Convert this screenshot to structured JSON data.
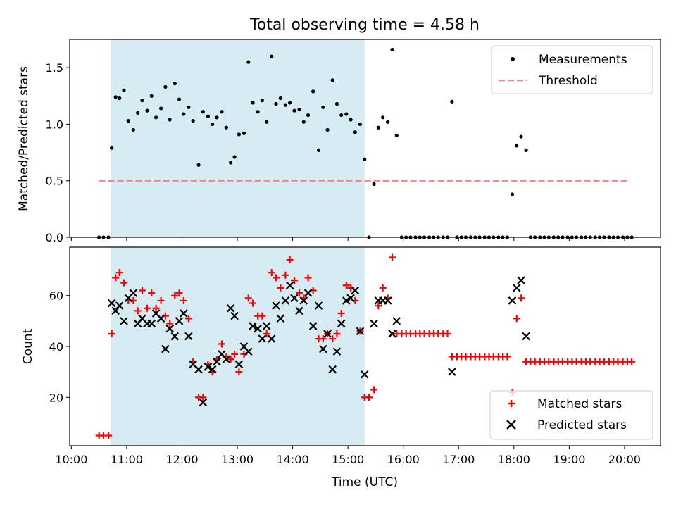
{
  "chart_data": {
    "title": "Total observing time = 4.58 h",
    "xlabel": "Time (UTC)",
    "x_ticks": [
      "10:00",
      "11:00",
      "12:00",
      "13:00",
      "14:00",
      "15:00",
      "16:00",
      "17:00",
      "18:00",
      "19:00",
      "20:00"
    ],
    "x_range_hours": [
      9.97,
      20.65
    ],
    "observing_window_hours": [
      10.72,
      15.3
    ],
    "colors": {
      "window": "#add8e6",
      "measurements": "#000000",
      "threshold": "#ff7f7f",
      "matched": "#ff0000",
      "predicted": "#000000"
    },
    "top": {
      "type": "scatter",
      "ylabel": "Matched/Predicted stars",
      "ylim": [
        0.0,
        1.75
      ],
      "y_ticks": [
        "0.0",
        "0.5",
        "1.0",
        "1.5"
      ],
      "threshold": 0.5,
      "threshold_x": [
        10.5,
        20.1
      ],
      "legend": {
        "location": "top-right",
        "measurements": "Measurements",
        "threshold": "Threshold"
      },
      "points": [
        [
          10.5,
          0
        ],
        [
          10.58,
          0
        ],
        [
          10.67,
          0
        ],
        [
          10.73,
          0.79
        ],
        [
          10.8,
          1.24
        ],
        [
          10.87,
          1.23
        ],
        [
          10.95,
          1.3
        ],
        [
          11.03,
          1.03
        ],
        [
          11.12,
          0.95
        ],
        [
          11.2,
          1.1
        ],
        [
          11.28,
          1.21
        ],
        [
          11.37,
          1.12
        ],
        [
          11.45,
          1.25
        ],
        [
          11.53,
          1.06
        ],
        [
          11.62,
          1.14
        ],
        [
          11.7,
          1.33
        ],
        [
          11.78,
          1.04
        ],
        [
          11.87,
          1.36
        ],
        [
          11.95,
          1.22
        ],
        [
          12.03,
          1.09
        ],
        [
          12.12,
          1.15
        ],
        [
          12.2,
          1.03
        ],
        [
          12.3,
          0.64
        ],
        [
          12.38,
          1.11
        ],
        [
          12.47,
          1.07
        ],
        [
          12.55,
          1.0
        ],
        [
          12.63,
          1.06
        ],
        [
          12.72,
          1.11
        ],
        [
          12.8,
          0.97
        ],
        [
          12.88,
          0.66
        ],
        [
          12.95,
          0.71
        ],
        [
          13.03,
          0.91
        ],
        [
          13.12,
          0.92
        ],
        [
          13.2,
          1.55
        ],
        [
          13.28,
          1.19
        ],
        [
          13.37,
          1.11
        ],
        [
          13.45,
          1.21
        ],
        [
          13.53,
          1.02
        ],
        [
          13.62,
          1.6
        ],
        [
          13.7,
          1.18
        ],
        [
          13.78,
          1.23
        ],
        [
          13.87,
          1.17
        ],
        [
          13.95,
          1.19
        ],
        [
          14.03,
          1.12
        ],
        [
          14.12,
          1.13
        ],
        [
          14.2,
          1.02
        ],
        [
          14.28,
          1.08
        ],
        [
          14.37,
          1.29
        ],
        [
          14.47,
          0.77
        ],
        [
          14.55,
          1.15
        ],
        [
          14.63,
          0.95
        ],
        [
          14.72,
          1.39
        ],
        [
          14.8,
          1.18
        ],
        [
          14.88,
          1.08
        ],
        [
          14.97,
          1.09
        ],
        [
          15.05,
          1.04
        ],
        [
          15.13,
          0.93
        ],
        [
          15.22,
          1.0
        ],
        [
          15.3,
          0.69
        ],
        [
          15.38,
          0
        ],
        [
          15.47,
          0.47
        ],
        [
          15.55,
          0.97
        ],
        [
          15.63,
          1.06
        ],
        [
          15.72,
          1.02
        ],
        [
          15.8,
          1.66
        ],
        [
          15.88,
          0.9
        ],
        [
          15.97,
          0
        ],
        [
          16.05,
          0
        ],
        [
          16.13,
          0
        ],
        [
          16.22,
          0
        ],
        [
          16.3,
          0
        ],
        [
          16.38,
          0
        ],
        [
          16.47,
          0
        ],
        [
          16.55,
          0
        ],
        [
          16.63,
          0
        ],
        [
          16.72,
          0
        ],
        [
          16.8,
          0
        ],
        [
          16.88,
          1.2
        ],
        [
          16.97,
          0
        ],
        [
          17.05,
          0
        ],
        [
          17.13,
          0
        ],
        [
          17.22,
          0
        ],
        [
          17.3,
          0
        ],
        [
          17.38,
          0
        ],
        [
          17.47,
          0
        ],
        [
          17.55,
          0
        ],
        [
          17.63,
          0
        ],
        [
          17.72,
          0
        ],
        [
          17.8,
          0
        ],
        [
          17.88,
          0
        ],
        [
          17.97,
          0.38
        ],
        [
          18.05,
          0.81
        ],
        [
          18.13,
          0.89
        ],
        [
          18.22,
          0.77
        ],
        [
          18.3,
          0
        ],
        [
          18.38,
          0
        ],
        [
          18.47,
          0
        ],
        [
          18.55,
          0
        ],
        [
          18.63,
          0
        ],
        [
          18.72,
          0
        ],
        [
          18.8,
          0
        ],
        [
          18.88,
          0
        ],
        [
          18.97,
          0
        ],
        [
          19.05,
          0
        ],
        [
          19.13,
          0
        ],
        [
          19.22,
          0
        ],
        [
          19.3,
          0
        ],
        [
          19.38,
          0
        ],
        [
          19.47,
          0
        ],
        [
          19.55,
          0
        ],
        [
          19.63,
          0
        ],
        [
          19.72,
          0
        ],
        [
          19.8,
          0
        ],
        [
          19.88,
          0
        ],
        [
          19.97,
          0
        ],
        [
          20.05,
          0
        ],
        [
          20.13,
          0
        ]
      ]
    },
    "bottom": {
      "type": "scatter",
      "ylabel": "Count",
      "ylim": [
        1,
        79
      ],
      "y_ticks": [
        20,
        40,
        60
      ],
      "legend": {
        "location": "bottom-right",
        "matched": "Matched stars",
        "predicted": "Predicted stars"
      },
      "matched": [
        [
          10.5,
          5
        ],
        [
          10.58,
          5
        ],
        [
          10.67,
          5
        ],
        [
          10.73,
          45
        ],
        [
          10.8,
          67
        ],
        [
          10.87,
          69
        ],
        [
          10.95,
          65
        ],
        [
          11.03,
          58
        ],
        [
          11.12,
          58
        ],
        [
          11.2,
          54
        ],
        [
          11.28,
          62
        ],
        [
          11.37,
          55
        ],
        [
          11.45,
          61
        ],
        [
          11.53,
          55
        ],
        [
          11.62,
          58
        ],
        [
          11.7,
          52
        ],
        [
          11.78,
          49
        ],
        [
          11.87,
          60
        ],
        [
          11.95,
          61
        ],
        [
          12.03,
          58
        ],
        [
          12.12,
          51
        ],
        [
          12.2,
          34
        ],
        [
          12.3,
          20
        ],
        [
          12.38,
          20
        ],
        [
          12.47,
          33
        ],
        [
          12.55,
          30
        ],
        [
          12.63,
          35
        ],
        [
          12.72,
          41
        ],
        [
          12.8,
          36
        ],
        [
          12.88,
          35
        ],
        [
          12.95,
          37
        ],
        [
          13.03,
          30
        ],
        [
          13.12,
          37
        ],
        [
          13.2,
          59
        ],
        [
          13.28,
          57
        ],
        [
          13.37,
          52
        ],
        [
          13.45,
          52
        ],
        [
          13.53,
          45
        ],
        [
          13.62,
          69
        ],
        [
          13.7,
          67
        ],
        [
          13.78,
          63
        ],
        [
          13.87,
          68
        ],
        [
          13.95,
          74
        ],
        [
          14.03,
          66
        ],
        [
          14.12,
          61
        ],
        [
          14.2,
          59
        ],
        [
          14.28,
          67
        ],
        [
          14.37,
          62
        ],
        [
          14.47,
          43
        ],
        [
          14.55,
          43
        ],
        [
          14.63,
          45
        ],
        [
          14.72,
          43
        ],
        [
          14.8,
          45
        ],
        [
          14.88,
          53
        ],
        [
          14.97,
          64
        ],
        [
          15.05,
          63
        ],
        [
          15.13,
          58
        ],
        [
          15.22,
          46
        ],
        [
          15.3,
          20
        ],
        [
          15.38,
          20
        ],
        [
          15.47,
          23
        ],
        [
          15.55,
          56
        ],
        [
          15.63,
          63
        ],
        [
          15.72,
          59
        ],
        [
          15.8,
          75
        ],
        [
          15.88,
          45
        ],
        [
          15.97,
          45
        ],
        [
          16.05,
          45
        ],
        [
          16.13,
          45
        ],
        [
          16.22,
          45
        ],
        [
          16.3,
          45
        ],
        [
          16.38,
          45
        ],
        [
          16.47,
          45
        ],
        [
          16.55,
          45
        ],
        [
          16.63,
          45
        ],
        [
          16.72,
          45
        ],
        [
          16.8,
          45
        ],
        [
          16.88,
          36
        ],
        [
          16.97,
          36
        ],
        [
          17.05,
          36
        ],
        [
          17.13,
          36
        ],
        [
          17.22,
          36
        ],
        [
          17.3,
          36
        ],
        [
          17.38,
          36
        ],
        [
          17.47,
          36
        ],
        [
          17.55,
          36
        ],
        [
          17.63,
          36
        ],
        [
          17.72,
          36
        ],
        [
          17.8,
          36
        ],
        [
          17.88,
          36
        ],
        [
          17.97,
          22
        ],
        [
          18.05,
          51
        ],
        [
          18.13,
          59
        ],
        [
          18.22,
          34
        ],
        [
          18.3,
          34
        ],
        [
          18.38,
          34
        ],
        [
          18.47,
          34
        ],
        [
          18.55,
          34
        ],
        [
          18.63,
          34
        ],
        [
          18.72,
          34
        ],
        [
          18.8,
          34
        ],
        [
          18.88,
          34
        ],
        [
          18.97,
          34
        ],
        [
          19.05,
          34
        ],
        [
          19.13,
          34
        ],
        [
          19.22,
          34
        ],
        [
          19.3,
          34
        ],
        [
          19.38,
          34
        ],
        [
          19.47,
          34
        ],
        [
          19.55,
          34
        ],
        [
          19.63,
          34
        ],
        [
          19.72,
          34
        ],
        [
          19.8,
          34
        ],
        [
          19.88,
          34
        ],
        [
          19.97,
          34
        ],
        [
          20.05,
          34
        ],
        [
          20.13,
          34
        ]
      ],
      "predicted": [
        [
          10.73,
          57
        ],
        [
          10.8,
          54
        ],
        [
          10.87,
          56
        ],
        [
          10.95,
          50
        ],
        [
          11.03,
          59
        ],
        [
          11.12,
          61
        ],
        [
          11.2,
          49
        ],
        [
          11.28,
          51
        ],
        [
          11.37,
          49
        ],
        [
          11.45,
          49
        ],
        [
          11.53,
          53
        ],
        [
          11.62,
          51
        ],
        [
          11.7,
          39
        ],
        [
          11.78,
          47
        ],
        [
          11.87,
          44
        ],
        [
          11.95,
          50
        ],
        [
          12.03,
          53
        ],
        [
          12.12,
          44
        ],
        [
          12.2,
          33
        ],
        [
          12.3,
          31
        ],
        [
          12.38,
          18
        ],
        [
          12.47,
          32
        ],
        [
          12.55,
          31
        ],
        [
          12.63,
          34
        ],
        [
          12.72,
          37
        ],
        [
          12.8,
          35
        ],
        [
          12.88,
          55
        ],
        [
          12.95,
          52
        ],
        [
          13.03,
          33
        ],
        [
          13.12,
          40
        ],
        [
          13.2,
          38
        ],
        [
          13.28,
          48
        ],
        [
          13.37,
          47
        ],
        [
          13.45,
          43
        ],
        [
          13.53,
          48
        ],
        [
          13.62,
          43
        ],
        [
          13.7,
          56
        ],
        [
          13.78,
          51
        ],
        [
          13.87,
          58
        ],
        [
          13.95,
          64
        ],
        [
          14.03,
          59
        ],
        [
          14.12,
          54
        ],
        [
          14.2,
          58
        ],
        [
          14.28,
          61
        ],
        [
          14.37,
          48
        ],
        [
          14.47,
          56
        ],
        [
          14.55,
          39
        ],
        [
          14.63,
          45
        ],
        [
          14.72,
          31
        ],
        [
          14.8,
          38
        ],
        [
          14.88,
          49
        ],
        [
          14.97,
          58
        ],
        [
          15.05,
          59
        ],
        [
          15.13,
          62
        ],
        [
          15.22,
          46
        ],
        [
          15.3,
          29
        ],
        [
          15.47,
          49
        ],
        [
          15.55,
          58
        ],
        [
          15.63,
          58
        ],
        [
          15.72,
          58
        ],
        [
          15.8,
          45
        ],
        [
          15.88,
          50
        ],
        [
          16.88,
          30
        ],
        [
          17.97,
          58
        ],
        [
          18.05,
          63
        ],
        [
          18.13,
          66
        ],
        [
          18.22,
          44
        ]
      ]
    }
  }
}
